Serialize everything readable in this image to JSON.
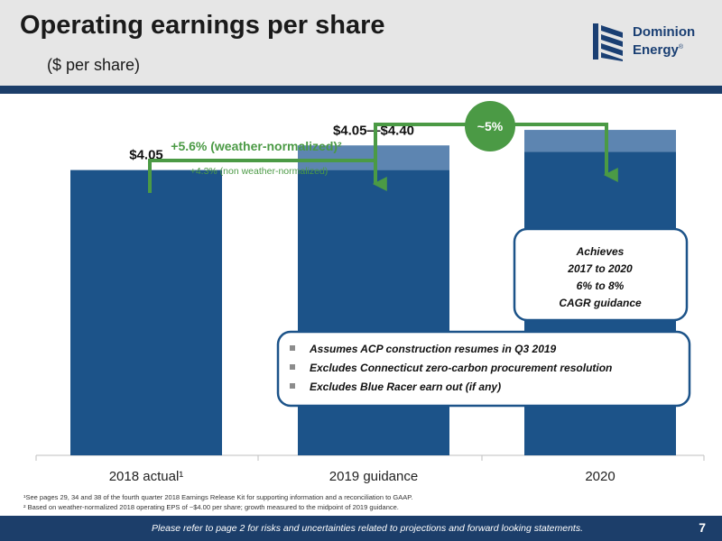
{
  "slide": {
    "title": "Operating earnings per share",
    "subtitle": "($ per share)",
    "logo": {
      "line1": "Dominion",
      "line2": "Energy",
      "mark": "®"
    },
    "footnotes": [
      "¹See pages 29, 34 and 38 of the fourth quarter 2018 Earnings Release Kit for supporting information and a reconciliation to GAAP.",
      "² Based on weather-normalized 2018 operating EPS of ~$4.00 per share; growth measured to the midpoint of 2019 guidance."
    ],
    "footer_text": "Please refer to page 2 for risks and uncertainties related to projections and forward looking statements.",
    "page_number": "7"
  },
  "chart_data": {
    "type": "bar",
    "categories": [
      "2018 actual¹",
      "2019 guidance",
      "2020"
    ],
    "values": [
      4.05,
      4.05,
      4.31
    ],
    "range_high": [
      null,
      4.4,
      4.62
    ],
    "ylim": [
      0,
      4.8
    ],
    "grid": false,
    "colors": {
      "bar": "#1c5389",
      "range": "#5d85b1",
      "arrow": "#4b9a45"
    },
    "labels": [
      "$4.05",
      "$4.05—$4.40",
      ""
    ],
    "annotations": {
      "growth_main": "+5.6% (weather-normalized)²",
      "growth_sub": "+4.3% (non weather-normalized)",
      "circle": "~5%",
      "callout": [
        "Achieves",
        "2017 to 2020",
        "6% to 8%",
        "CAGR guidance"
      ],
      "bullets": [
        "Assumes ACP construction resumes in Q3 2019",
        "Excludes Connecticut zero-carbon procurement resolution",
        "Excludes Blue Racer earn out (if any)"
      ]
    }
  }
}
